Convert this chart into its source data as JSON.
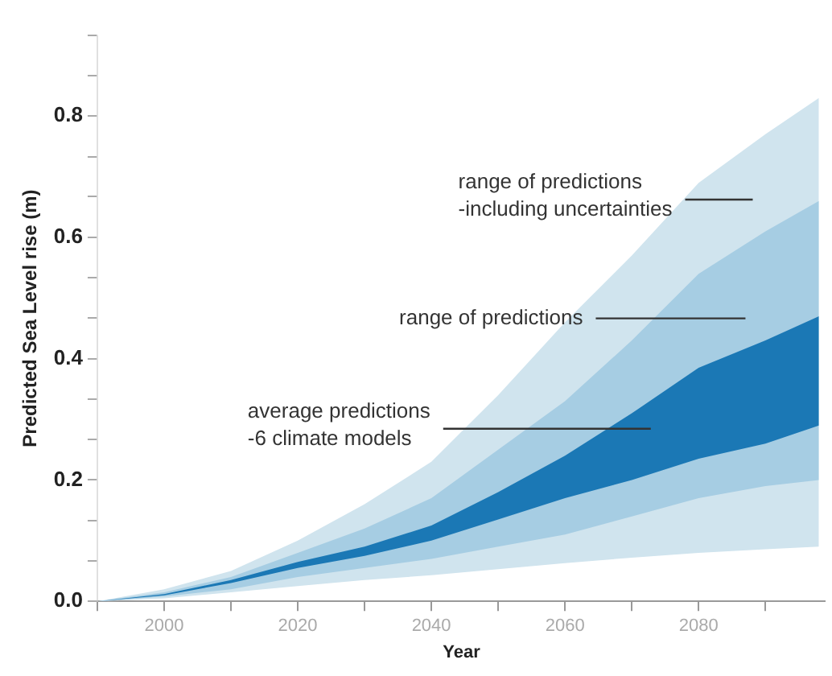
{
  "chart_data": {
    "type": "area",
    "xlabel": "Year",
    "ylabel": "Predicted Sea Level rise (m)",
    "x": [
      1990,
      2000,
      2010,
      2020,
      2030,
      2040,
      2050,
      2060,
      2070,
      2080,
      2090,
      2098
    ],
    "series": [
      {
        "type": "area",
        "color": "#d0e4ee",
        "values": [
          null,
          null,
          null,
          null,
          null,
          null,
          null,
          null,
          null,
          null,
          null,
          null
        ],
        "lower": [
          0,
          0.005,
          0.015,
          0.025,
          0.035,
          0.043,
          0.053,
          0.063,
          0.072,
          0.08,
          0.086,
          0.09
        ],
        "upper": [
          0,
          0.02,
          0.05,
          0.1,
          0.16,
          0.23,
          0.34,
          0.46,
          0.57,
          0.69,
          0.77,
          0.83
        ]
      },
      {
        "type": "area",
        "color": "#a6cde3",
        "values": [
          null,
          null,
          null,
          null,
          null,
          null,
          null,
          null,
          null,
          null,
          null,
          null
        ],
        "lower": [
          0,
          0.008,
          0.02,
          0.04,
          0.055,
          0.07,
          0.09,
          0.11,
          0.14,
          0.17,
          0.19,
          0.2
        ],
        "upper": [
          0,
          0.015,
          0.04,
          0.08,
          0.12,
          0.17,
          0.25,
          0.33,
          0.43,
          0.54,
          0.61,
          0.66
        ]
      },
      {
        "type": "area",
        "color": "#1b78b5",
        "values": [
          null,
          null,
          null,
          null,
          null,
          null,
          null,
          null,
          null,
          null,
          null,
          null
        ],
        "lower": [
          0,
          0.01,
          0.03,
          0.055,
          0.075,
          0.1,
          0.135,
          0.17,
          0.2,
          0.235,
          0.26,
          0.29
        ],
        "upper": [
          0,
          0.012,
          0.035,
          0.065,
          0.09,
          0.125,
          0.18,
          0.24,
          0.31,
          0.385,
          0.43,
          0.47
        ]
      }
    ],
    "xlim": [
      1990,
      2099
    ],
    "xticks": [
      {
        "value": 1990,
        "label": null
      },
      2000,
      {
        "value": 2010,
        "label": null
      },
      2020,
      {
        "value": 2030,
        "label": null
      },
      2040,
      {
        "value": 2050,
        "label": null
      },
      2060,
      {
        "value": 2070,
        "label": null
      },
      2080,
      {
        "value": 2090,
        "label": null
      }
    ],
    "ylim": [
      0,
      0.933
    ],
    "yticks": [
      {
        "value": 0,
        "label": "0.0"
      },
      {
        "value": 0.067,
        "label": null
      },
      {
        "value": 0.133,
        "label": null
      },
      0.2,
      {
        "value": 0.267,
        "label": null
      },
      {
        "value": 0.333,
        "label": null
      },
      0.4,
      {
        "value": 0.467,
        "label": null
      },
      {
        "value": 0.533,
        "label": null
      },
      0.6,
      {
        "value": 0.667,
        "label": null
      },
      {
        "value": 0.733,
        "label": null
      },
      0.8,
      {
        "value": 0.867,
        "label": null
      },
      {
        "value": 0.933,
        "label": null
      }
    ],
    "grid": false,
    "legend": false,
    "annotations": [
      "range of predictions\n-including uncertainties",
      "range of predictions",
      "average predictions\n-6 climate models"
    ]
  }
}
